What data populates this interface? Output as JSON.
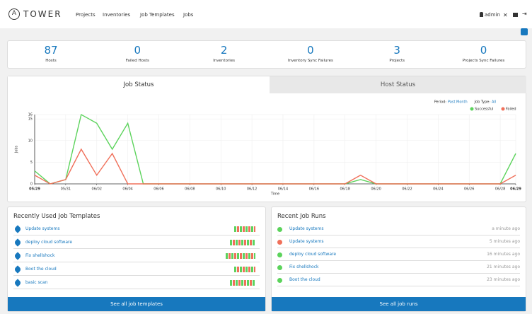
{
  "header": {
    "brand": "TOWER",
    "nav": [
      "Projects",
      "Inventories",
      "Job Templates",
      "Jobs"
    ],
    "user": "admin"
  },
  "counts": [
    {
      "value": 87,
      "label": "Hosts"
    },
    {
      "value": 0,
      "label": "Failed Hosts"
    },
    {
      "value": 2,
      "label": "Inventories"
    },
    {
      "value": 0,
      "label": "Inventory Sync Failures"
    },
    {
      "value": 3,
      "label": "Projects"
    },
    {
      "value": 0,
      "label": "Projects Sync Failures"
    }
  ],
  "tabs": [
    "Job Status",
    "Host Status"
  ],
  "chart_data": {
    "type": "line",
    "period_label": "Period:",
    "period": "Past Month",
    "job_type_label": "Job Type:",
    "job_type": "All",
    "ylabel": "Jobs",
    "xlabel": "Time",
    "categories": [
      "05/29",
      null,
      "05/31",
      null,
      "06/02",
      null,
      "06/04",
      null,
      "06/06",
      null,
      "06/08",
      null,
      "06/10",
      null,
      "06/12",
      null,
      "06/14",
      null,
      "06/16",
      null,
      "06/18",
      null,
      "06/20",
      null,
      "06/22",
      null,
      "06/24",
      null,
      "06/26",
      null,
      "06/28",
      "06/29"
    ],
    "series": [
      {
        "name": "Successful",
        "color": "#5cd35c",
        "values": [
          3,
          0,
          1,
          16,
          14,
          8,
          14,
          0,
          0,
          0,
          0,
          0,
          0,
          0,
          0,
          0,
          0,
          0,
          0,
          0,
          0,
          1,
          0,
          0,
          0,
          0,
          0,
          0,
          0,
          0,
          0,
          7
        ]
      },
      {
        "name": "Failed",
        "color": "#f0705a",
        "values": [
          2,
          0,
          1,
          8,
          2,
          7,
          0,
          0,
          0,
          0,
          0,
          0,
          0,
          0,
          0,
          0,
          0,
          0,
          0,
          0,
          0,
          2,
          0,
          0,
          0,
          0,
          0,
          0,
          0,
          0,
          0,
          2
        ]
      }
    ],
    "ylim": [
      0,
      16
    ],
    "yticks": [
      0,
      5,
      10,
      15,
      16
    ],
    "grid": true
  },
  "templates": {
    "title": "Recently Used Job Templates",
    "items": [
      "Update systems",
      "deploy cloud software",
      "Fix shellshock",
      "Boot the cloud",
      "basic scan"
    ],
    "button": "See all job templates"
  },
  "runs": {
    "title": "Recent Job Runs",
    "items": [
      {
        "name": "Update systems",
        "time": "a minute ago"
      },
      {
        "name": "Update systems",
        "time": "5 minutes ago"
      },
      {
        "name": "deploy cloud software",
        "time": "16 minutes ago"
      },
      {
        "name": "Fix shellshock",
        "time": "21 minutes ago"
      },
      {
        "name": "Boot the cloud",
        "time": "23 minutes ago"
      }
    ],
    "button": "See all job runs"
  }
}
